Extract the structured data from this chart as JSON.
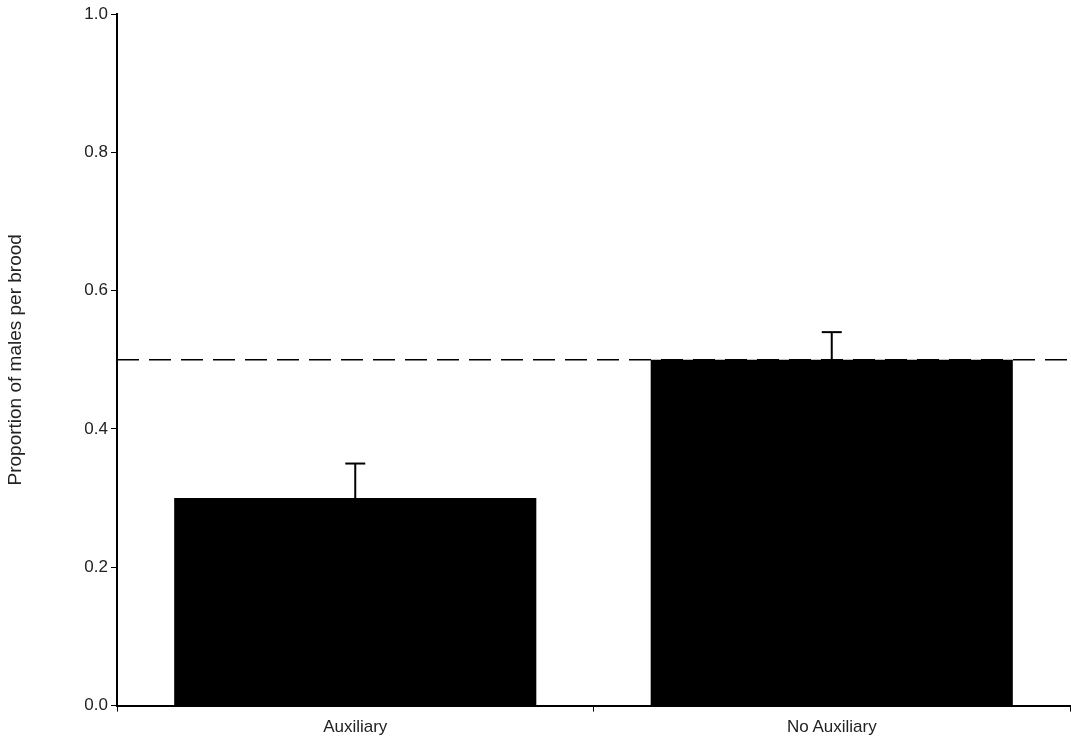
{
  "chart_data": {
    "type": "bar",
    "ylabel": "Proportion of males per brood",
    "categories": [
      "Auxiliary",
      "No Auxiliary"
    ],
    "values": [
      0.3,
      0.5
    ],
    "color": "#000000",
    "errors": [
      [
        0.3,
        0.35
      ],
      [
        0.5,
        0.54
      ]
    ],
    "ylim": [
      0,
      1
    ],
    "yticks": [
      {
        "value": 0,
        "label": "0.0"
      },
      0.2,
      0.4,
      0.6,
      0.8,
      {
        "value": 1,
        "label": "1.0"
      }
    ],
    "ref_lines": [
      {
        "axis": "y",
        "value": 0.5,
        "color": "#000000",
        "line_style": "dashed"
      }
    ],
    "grid": false,
    "legend": false
  }
}
